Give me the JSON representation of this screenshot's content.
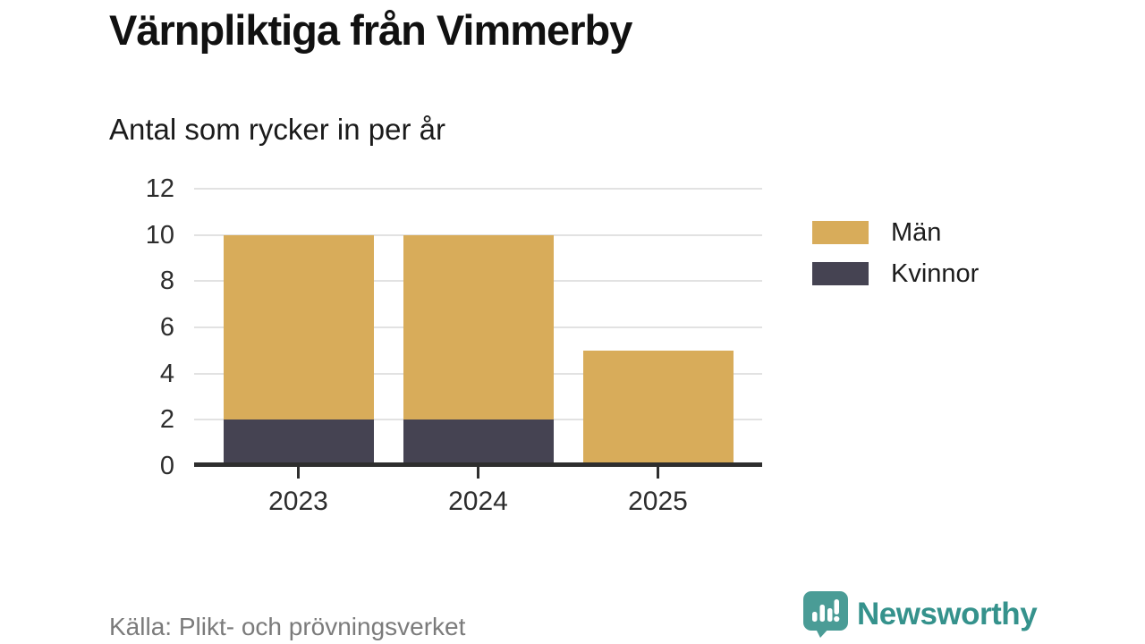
{
  "chart_data": {
    "type": "bar",
    "stacked": true,
    "title": "Värnpliktiga från Vimmerby",
    "subtitle": "Antal som rycker in per år",
    "categories": [
      "2023",
      "2024",
      "2025"
    ],
    "series": [
      {
        "name": "Män",
        "color": "#d8ac5a",
        "values": [
          8,
          8,
          5
        ]
      },
      {
        "name": "Kvinnor",
        "color": "#454352",
        "values": [
          2,
          2,
          0
        ]
      }
    ],
    "stack_order": [
      "Kvinnor",
      "Män"
    ],
    "stacked_totals": [
      10,
      10,
      5
    ],
    "ylim": [
      0,
      12
    ],
    "yticks": [
      0,
      2,
      4,
      6,
      8,
      10,
      12
    ],
    "xlabel": "",
    "ylabel": "",
    "grid": "horizontal",
    "grid_color": "#e2e2e2",
    "axis_color": "#2e2e2e",
    "legend_position": "right"
  },
  "footer": {
    "source": "Källa: Plikt- och prövningsverket",
    "brand": {
      "name": "Newsworthy",
      "color": "#35928c",
      "icon": "newsworthy-speech-bubble-icon",
      "icon_color": "#4a9c96"
    }
  }
}
